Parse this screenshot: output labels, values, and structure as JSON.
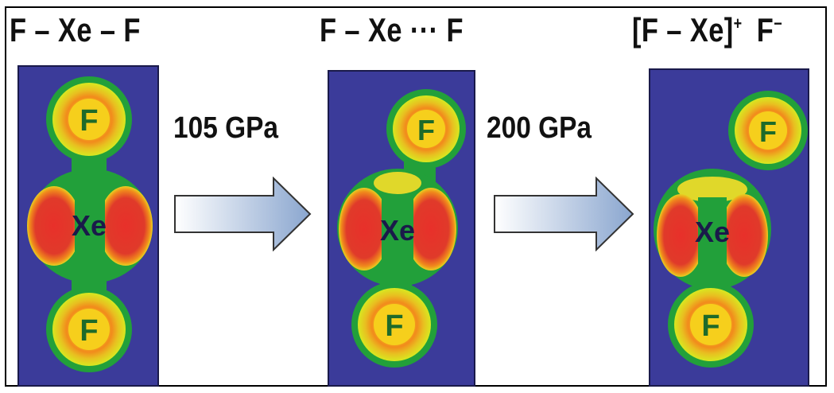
{
  "panels": [
    {
      "title": "F – Xe – F",
      "top_atom": "F",
      "center_atom": "Xe",
      "bottom_atom": "F"
    },
    {
      "title": "F – Xe ··· F",
      "top_atom": "F",
      "center_atom": "Xe",
      "bottom_atom": "F"
    },
    {
      "title_main": "[F – Xe]",
      "title_sup": "+",
      "title_anion": "F",
      "title_anion_sup": "−",
      "top_atom": "F",
      "center_atom": "Xe",
      "bottom_atom": "F"
    }
  ],
  "transitions": [
    {
      "label": "105 GPa"
    },
    {
      "label": "200 GPa"
    }
  ],
  "colors": {
    "panel_bg": "#3b3b9a",
    "outer_glow": "#22a03a",
    "ring_orange": "#f28a1c",
    "ring_yellow": "#f4e01e",
    "core_red": "#e03a2a",
    "arrow_fill_start": "#ffffff",
    "arrow_fill_end": "#8aa6cf"
  }
}
